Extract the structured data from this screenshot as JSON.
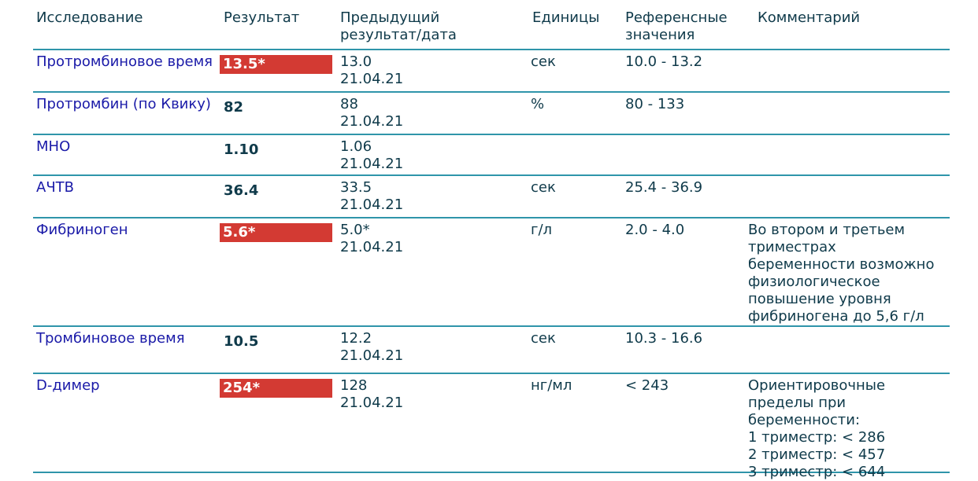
{
  "headers": {
    "name": "Исследование",
    "result": "Результат",
    "prev_line1": "Предыдущий",
    "prev_line2": "результат/дата",
    "units": "Единицы",
    "ref_line1": "Референсные",
    "ref_line2": "значения",
    "comment": "Комментарий"
  },
  "rows": [
    {
      "name": "Протромбиновое время",
      "result": "13.5*",
      "flagged": true,
      "prev_value": "13.0",
      "prev_date": "21.04.21",
      "units": "сек",
      "ref": "10.0 - 13.2",
      "comment": []
    },
    {
      "name": "Протромбин (по Квику)",
      "result": "82",
      "flagged": false,
      "prev_value": "88",
      "prev_date": "21.04.21",
      "units": "%",
      "ref": "80 - 133",
      "comment": []
    },
    {
      "name": "МНО",
      "result": "1.10",
      "flagged": false,
      "prev_value": "1.06",
      "prev_date": "21.04.21",
      "units": "",
      "ref": "",
      "comment": []
    },
    {
      "name": "АЧТВ",
      "result": "36.4",
      "flagged": false,
      "prev_value": "33.5",
      "prev_date": "21.04.21",
      "units": "сек",
      "ref": "25.4 - 36.9",
      "comment": []
    },
    {
      "name": "Фибриноген",
      "result": "5.6*",
      "flagged": true,
      "prev_value": "5.0*",
      "prev_date": "21.04.21",
      "units": "г/л",
      "ref": "2.0 - 4.0",
      "comment": [
        "Во втором и третьем",
        "триместрах",
        "беременности возможно",
        "физиологическое",
        "повышение уровня",
        "фибриногена до 5,6 г/л"
      ]
    },
    {
      "name": "Тромбиновое время",
      "result": "10.5",
      "flagged": false,
      "prev_value": "12.2",
      "prev_date": "21.04.21",
      "units": "сек",
      "ref": "10.3 - 16.6",
      "comment": []
    },
    {
      "name": "D-димер",
      "result": "254*",
      "flagged": true,
      "prev_value": "128",
      "prev_date": "21.04.21",
      "units": "нг/мл",
      "ref": "< 243",
      "comment": [
        "Ориентировочные",
        "пределы при",
        "беременности:",
        "1 триместр: < 286",
        "2 триместр: < 457",
        "3 триместр: < 644"
      ]
    }
  ],
  "colors": {
    "rule": "#2f95aa",
    "flag_bg": "#d33a33",
    "name_text": "#1a1aa8",
    "body_text": "#0f3a4a"
  }
}
